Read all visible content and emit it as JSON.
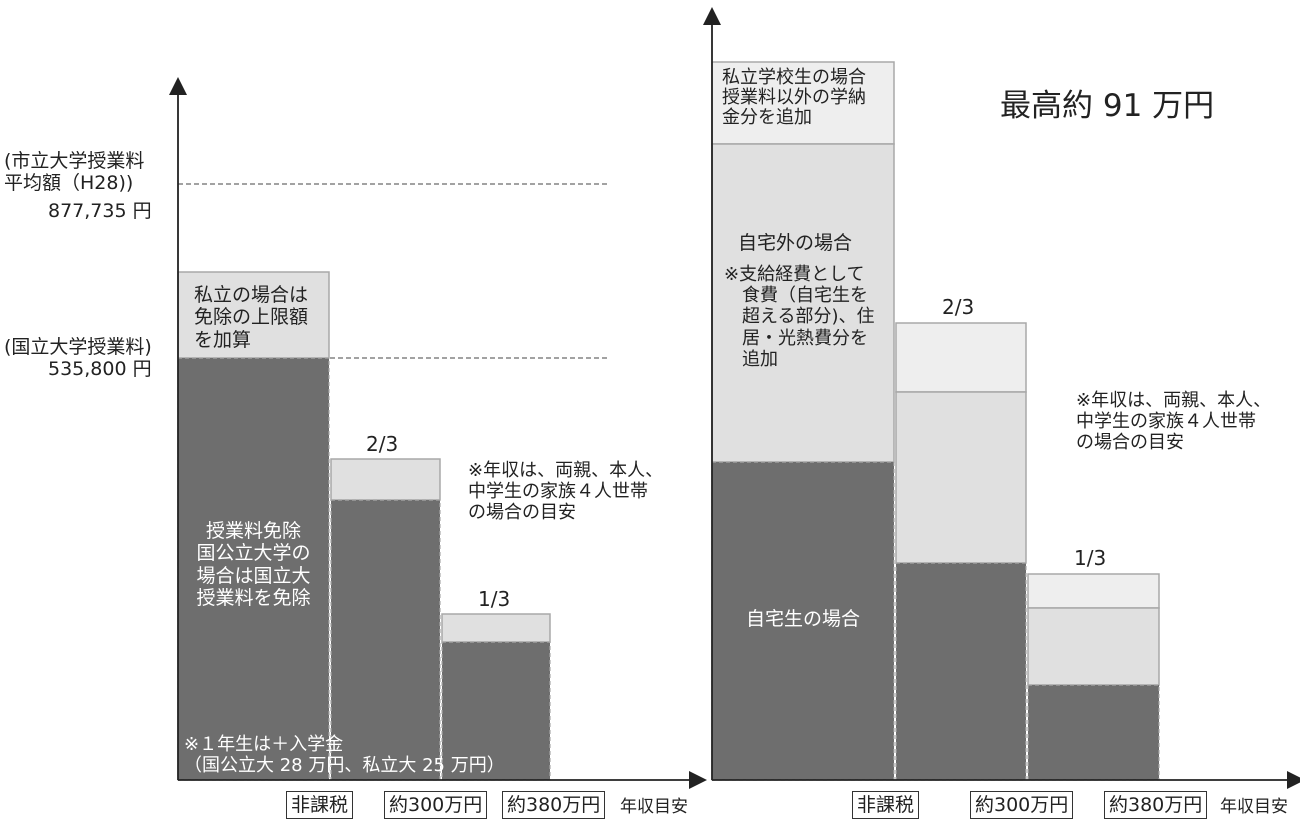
{
  "left": {
    "ylabel_city": "(市立大学授業料\n平均額（H28))",
    "ylabel_city_value": "877,735 円",
    "ylabel_national": "(国立大学授業料)",
    "ylabel_national_value": "535,800 円",
    "private_add_label": "私立の場合は\n免除の上限額\nを加算",
    "exemption_label": "授業料免除\n国公立大学の\n場合は国立大\n授業料を免除",
    "frac_two_thirds": "2/3",
    "frac_one_third": "1/3",
    "income_note": "※年収は、両親、本人、\n中学生の家族４人世帯\nの場合の目安",
    "entrance_note": "※１年生は＋入学金\n（国公立大 28 万円、私立大 25 万円）",
    "x_categories": [
      "非課税",
      "約300万円",
      "約380万円"
    ],
    "x_axis_name": "年収目安"
  },
  "right": {
    "private_extra_label": "私立学校生の場合\n授業料以外の学納\n金分を追加",
    "max_label": "最高約 91 万円",
    "away_label": "自宅外の場合",
    "away_note": "※支給経費として\n　食費（自宅生を\n　超える部分)、住\n　居・光熱費分を\n　追加",
    "home_label": "自宅生の場合",
    "frac_two_thirds": "2/3",
    "frac_one_third": "1/3",
    "income_note": "※年収は、両親、本人、\n中学生の家族４人世帯\nの場合の目安",
    "x_categories": [
      "非課税",
      "約300万円",
      "約380万円"
    ],
    "x_axis_name": "年収目安"
  },
  "colors": {
    "dark_fill": "#6e6e6e",
    "mid_fill": "#e0e0e0",
    "light_fill": "#eeeeee",
    "outline": "#a8a8a8",
    "axis": "#222222"
  }
}
